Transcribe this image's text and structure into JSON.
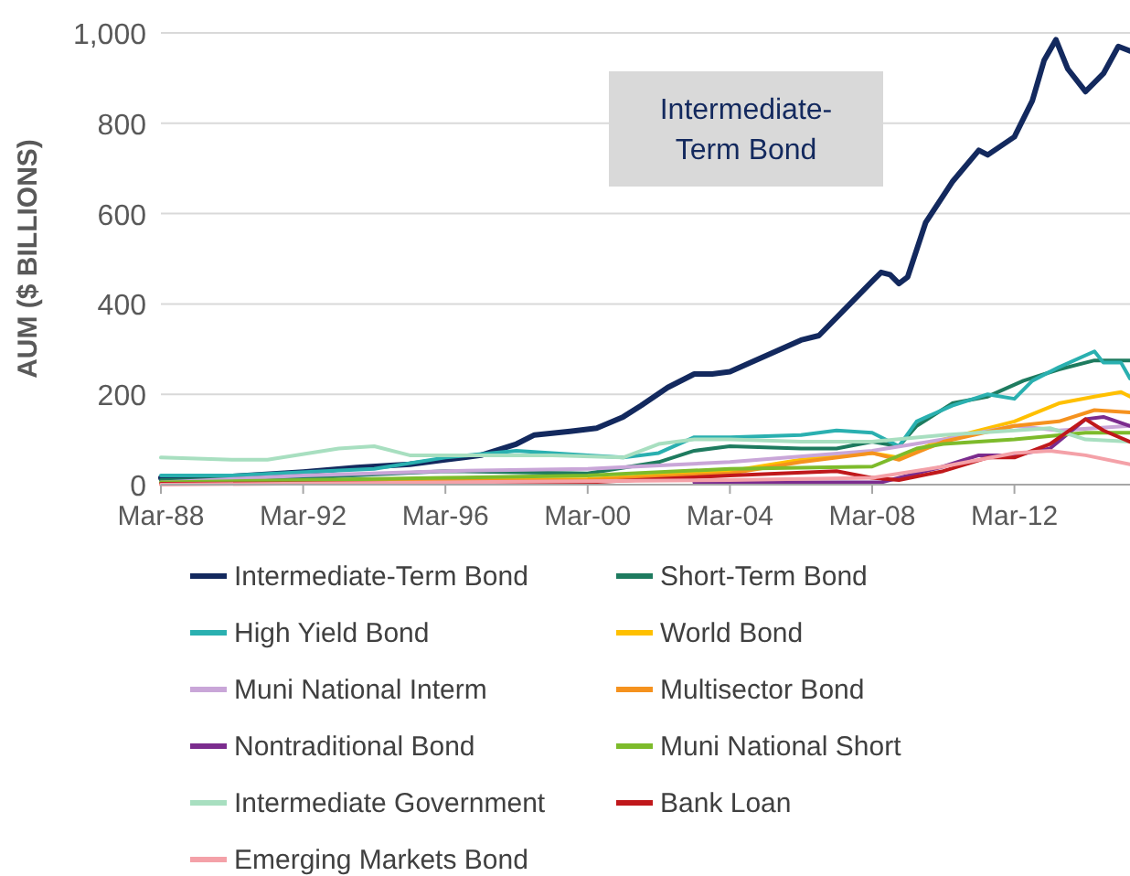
{
  "chart_data": {
    "type": "line",
    "ylabel": "AUM ($ BILLIONS)",
    "annotations": [
      "Intermediate-Term Bond"
    ],
    "xlim": [
      "1988-03",
      "2015-06"
    ],
    "xticks": [
      {
        "value": "1988-03",
        "label": "Mar-88"
      },
      {
        "value": "1992-03",
        "label": "Mar-92"
      },
      {
        "value": "1996-03",
        "label": "Mar-96"
      },
      {
        "value": "2000-03",
        "label": "Mar-00"
      },
      {
        "value": "2004-03",
        "label": "Mar-04"
      },
      {
        "value": "2008-03",
        "label": "Mar-08"
      },
      {
        "value": "2012-03",
        "label": "Mar-12"
      }
    ],
    "ylim": [
      0,
      1000
    ],
    "yticks": [
      0,
      200,
      400,
      600,
      800,
      {
        "value": 1000,
        "label": "1,000"
      }
    ],
    "grid": "y",
    "legend": "bottom",
    "marker": "none",
    "line_style": "solid",
    "series": [
      {
        "name": "Intermediate-Term Bond",
        "color": "#13295e",
        "x": [
          "1988-03",
          "1990-03",
          "1992-03",
          "1993-09",
          "1995-03",
          "1996-03",
          "1997-03",
          "1998-03",
          "1998-09",
          "1999-09",
          "2000-06",
          "2001-03",
          "2001-09",
          "2002-06",
          "2003-03",
          "2003-09",
          "2004-03",
          "2005-03",
          "2006-03",
          "2006-09",
          "2007-06",
          "2008-03",
          "2008-06",
          "2008-09",
          "2008-12",
          "2009-03",
          "2009-09",
          "2010-06",
          "2011-03",
          "2011-06",
          "2012-03",
          "2012-09",
          "2013-01",
          "2013-05",
          "2013-09",
          "2014-03",
          "2014-09",
          "2015-02",
          "2015-06"
        ],
        "values": [
          15,
          18,
          28,
          38,
          45,
          55,
          65,
          90,
          110,
          118,
          125,
          150,
          175,
          215,
          245,
          245,
          250,
          285,
          320,
          330,
          390,
          450,
          470,
          465,
          445,
          460,
          580,
          670,
          740,
          730,
          770,
          850,
          940,
          985,
          920,
          870,
          910,
          970,
          960
        ]
      },
      {
        "name": "Short-Term Bond",
        "color": "#1e7b5f",
        "x": [
          "1988-03",
          "1992-03",
          "1996-03",
          "2000-03",
          "2002-03",
          "2003-03",
          "2004-03",
          "2006-03",
          "2007-03",
          "2008-03",
          "2008-12",
          "2009-06",
          "2010-06",
          "2011-06",
          "2012-06",
          "2013-06",
          "2014-06",
          "2015-06"
        ],
        "values": [
          10,
          15,
          30,
          25,
          50,
          75,
          85,
          80,
          80,
          95,
          85,
          130,
          180,
          195,
          230,
          255,
          275,
          275
        ]
      },
      {
        "name": "High Yield Bond",
        "color": "#2ab0b0",
        "x": [
          "1988-03",
          "1990-03",
          "1994-03",
          "1996-03",
          "1998-03",
          "2000-03",
          "2001-03",
          "2002-03",
          "2003-03",
          "2004-03",
          "2006-03",
          "2007-03",
          "2008-03",
          "2008-12",
          "2009-06",
          "2010-06",
          "2011-06",
          "2012-03",
          "2012-09",
          "2013-06",
          "2014-06",
          "2014-09",
          "2015-03",
          "2015-06"
        ],
        "values": [
          20,
          20,
          35,
          60,
          75,
          65,
          60,
          70,
          105,
          105,
          110,
          120,
          115,
          85,
          140,
          175,
          200,
          190,
          230,
          260,
          295,
          270,
          270,
          235
        ]
      },
      {
        "name": "World Bond",
        "color": "#ffc000",
        "x": [
          "1988-03",
          "1996-03",
          "2000-03",
          "2004-03",
          "2006-03",
          "2008-03",
          "2008-12",
          "2010-03",
          "2012-03",
          "2013-06",
          "2014-06",
          "2015-03",
          "2015-06"
        ],
        "values": [
          2,
          10,
          12,
          30,
          55,
          70,
          60,
          100,
          140,
          180,
          195,
          205,
          195
        ]
      },
      {
        "name": "Muni National Interm",
        "color": "#c9a6d8",
        "x": [
          "1988-03",
          "1992-03",
          "1996-03",
          "2000-03",
          "2004-03",
          "2008-03",
          "2010-03",
          "2012-03",
          "2013-06",
          "2015-06"
        ],
        "values": [
          5,
          20,
          30,
          35,
          50,
          75,
          100,
          130,
          120,
          130
        ]
      },
      {
        "name": "Multisector Bond",
        "color": "#f5921e",
        "x": [
          "1988-03",
          "1996-03",
          "2000-03",
          "2004-03",
          "2006-03",
          "2008-03",
          "2008-12",
          "2010-03",
          "2012-03",
          "2013-06",
          "2014-06",
          "2015-06"
        ],
        "values": [
          2,
          8,
          10,
          25,
          50,
          70,
          55,
          95,
          130,
          140,
          165,
          160
        ]
      },
      {
        "name": "Nontraditional Bond",
        "color": "#7b2c8e",
        "x": [
          "2003-03",
          "2008-06",
          "2009-03",
          "2010-03",
          "2011-03",
          "2012-03",
          "2013-03",
          "2014-03",
          "2014-09",
          "2015-06"
        ],
        "values": [
          5,
          5,
          20,
          40,
          65,
          65,
          80,
          145,
          150,
          130
        ]
      },
      {
        "name": "Muni National Short",
        "color": "#7dbb2b",
        "x": [
          "1988-03",
          "1992-03",
          "1996-03",
          "2000-03",
          "2004-03",
          "2008-03",
          "2009-06",
          "2010-03",
          "2012-03",
          "2014-03",
          "2015-06"
        ],
        "values": [
          5,
          10,
          15,
          20,
          35,
          40,
          80,
          90,
          100,
          115,
          115
        ]
      },
      {
        "name": "Intermediate Government",
        "color": "#a8dfc0",
        "x": [
          "1988-03",
          "1990-03",
          "1991-03",
          "1993-03",
          "1994-03",
          "1995-03",
          "1997-03",
          "1999-03",
          "2001-03",
          "2002-03",
          "2003-03",
          "2004-03",
          "2006-03",
          "2008-03",
          "2010-03",
          "2012-03",
          "2013-03",
          "2014-03",
          "2015-06"
        ],
        "values": [
          60,
          55,
          55,
          80,
          85,
          65,
          65,
          65,
          60,
          90,
          100,
          100,
          95,
          95,
          110,
          120,
          125,
          100,
          95
        ]
      },
      {
        "name": "Bank Loan",
        "color": "#c0181b",
        "x": [
          "1988-03",
          "2000-03",
          "2004-03",
          "2007-03",
          "2008-03",
          "2008-12",
          "2010-03",
          "2011-06",
          "2012-03",
          "2013-03",
          "2014-03",
          "2014-09",
          "2015-06"
        ],
        "values": [
          2,
          5,
          20,
          30,
          15,
          10,
          30,
          60,
          60,
          90,
          145,
          120,
          95
        ]
      },
      {
        "name": "Emerging Markets Bond",
        "color": "#f4a1a8",
        "x": [
          "1988-03",
          "1996-03",
          "2004-03",
          "2008-03",
          "2010-03",
          "2012-03",
          "2013-03",
          "2014-03",
          "2015-06"
        ],
        "values": [
          0,
          5,
          10,
          15,
          40,
          70,
          75,
          65,
          45
        ]
      }
    ]
  }
}
